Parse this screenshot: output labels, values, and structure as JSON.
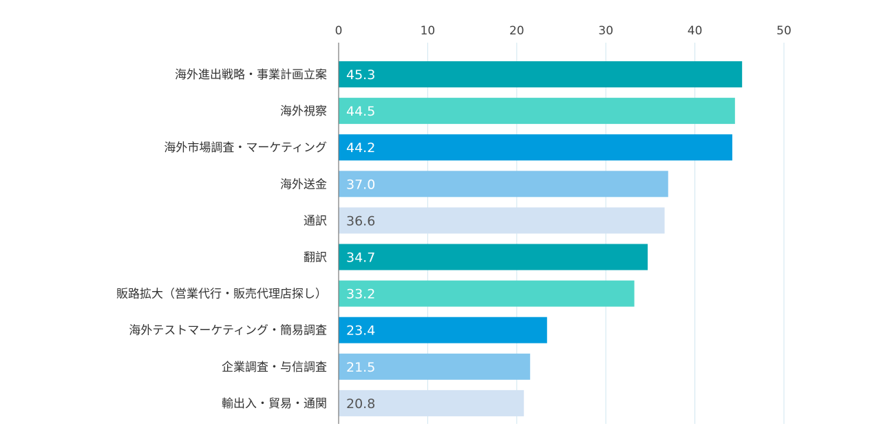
{
  "chart_data": {
    "type": "bar",
    "orientation": "horizontal",
    "title": "",
    "xlabel": "",
    "ylabel": "",
    "xlim": [
      0,
      50
    ],
    "ticks": [
      0,
      10,
      20,
      30,
      40,
      50
    ],
    "grid": true,
    "categories": [
      "海外進出戦略・事業計画立案",
      "海外視察",
      "海外市場調査・マーケティング",
      "海外送金",
      "通訳",
      "翻訳",
      "販路拡大（営業代行・販売代理店探し）",
      "海外テストマーケティング・簡易調査",
      "企業調査・与信調査",
      "輸出入・貿易・通関"
    ],
    "values": [
      45.3,
      44.5,
      44.2,
      37.0,
      36.6,
      34.7,
      33.2,
      23.4,
      21.5,
      20.8
    ],
    "value_labels": [
      "45.3",
      "44.5",
      "44.2",
      "37.0",
      "36.6",
      "34.7",
      "33.2",
      "23.4",
      "21.5",
      "20.8"
    ],
    "bar_colors": [
      "#00a6b1",
      "#4fd6c9",
      "#009cde",
      "#82c5ed",
      "#d2e2f3",
      "#00a6b1",
      "#4fd6c9",
      "#009cde",
      "#82c5ed",
      "#d2e2f3"
    ],
    "label_colors": [
      "#ffffff",
      "#ffffff",
      "#ffffff",
      "#ffffff",
      "#555555",
      "#ffffff",
      "#ffffff",
      "#ffffff",
      "#ffffff",
      "#555555"
    ],
    "grid_color": "#cfe6ef",
    "axis_color": "#777777"
  }
}
